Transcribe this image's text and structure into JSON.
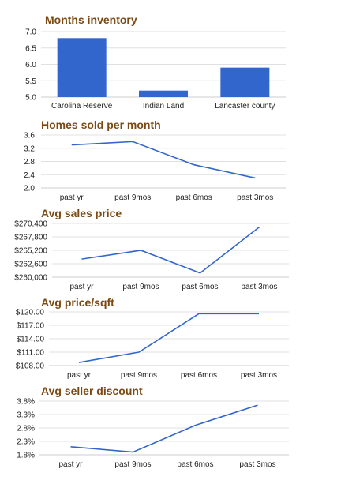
{
  "colors": {
    "series": "#3366cc",
    "title": "#7a4a12"
  },
  "chart_data": [
    {
      "type": "bar",
      "title": "Months inventory",
      "categories": [
        "Carolina Reserve",
        "Indian Land",
        "Lancaster county"
      ],
      "values": [
        6.8,
        5.2,
        5.9
      ],
      "ylim": [
        5.0,
        7.0
      ],
      "yticks": [
        "5.0",
        "5.5",
        "6.0",
        "6.5",
        "7.0"
      ],
      "grid": true
    },
    {
      "type": "line",
      "title": "Homes sold per month",
      "categories": [
        "past yr",
        "past 9mos",
        "past 6mos",
        "past 3mos"
      ],
      "values": [
        3.3,
        3.4,
        2.7,
        2.3
      ],
      "ylim": [
        2.0,
        3.6
      ],
      "yticks": [
        "2.0",
        "2.4",
        "2.8",
        "3.2",
        "3.6"
      ],
      "grid": true
    },
    {
      "type": "line",
      "title": "Avg sales price",
      "categories": [
        "past yr",
        "past 9mos",
        "past 6mos",
        "past 3mos"
      ],
      "values": [
        263500,
        265200,
        260800,
        269700
      ],
      "ylim": [
        260000,
        270400
      ],
      "yticks": [
        "$260,000",
        "$262,600",
        "$265,200",
        "$267,800",
        "$270,400"
      ],
      "grid": true
    },
    {
      "type": "line",
      "title": "Avg price/sqft",
      "categories": [
        "past yr",
        "past 9mos",
        "past 6mos",
        "past 3mos"
      ],
      "values": [
        108.7,
        111.0,
        119.6,
        119.6
      ],
      "ylim": [
        108.0,
        120.0
      ],
      "yticks": [
        "$108.00",
        "$111.00",
        "$114.00",
        "$117.00",
        "$120.00"
      ],
      "grid": true
    },
    {
      "type": "line",
      "title": "Avg seller discount",
      "categories": [
        "past yr",
        "past 9mos",
        "past 6mos",
        "past 3mos"
      ],
      "values": [
        2.1,
        1.9,
        2.9,
        3.65
      ],
      "ylim": [
        1.8,
        3.8
      ],
      "yticks": [
        "1.8%",
        "2.3%",
        "2.8%",
        "3.3%",
        "3.8%"
      ],
      "grid": true
    }
  ]
}
